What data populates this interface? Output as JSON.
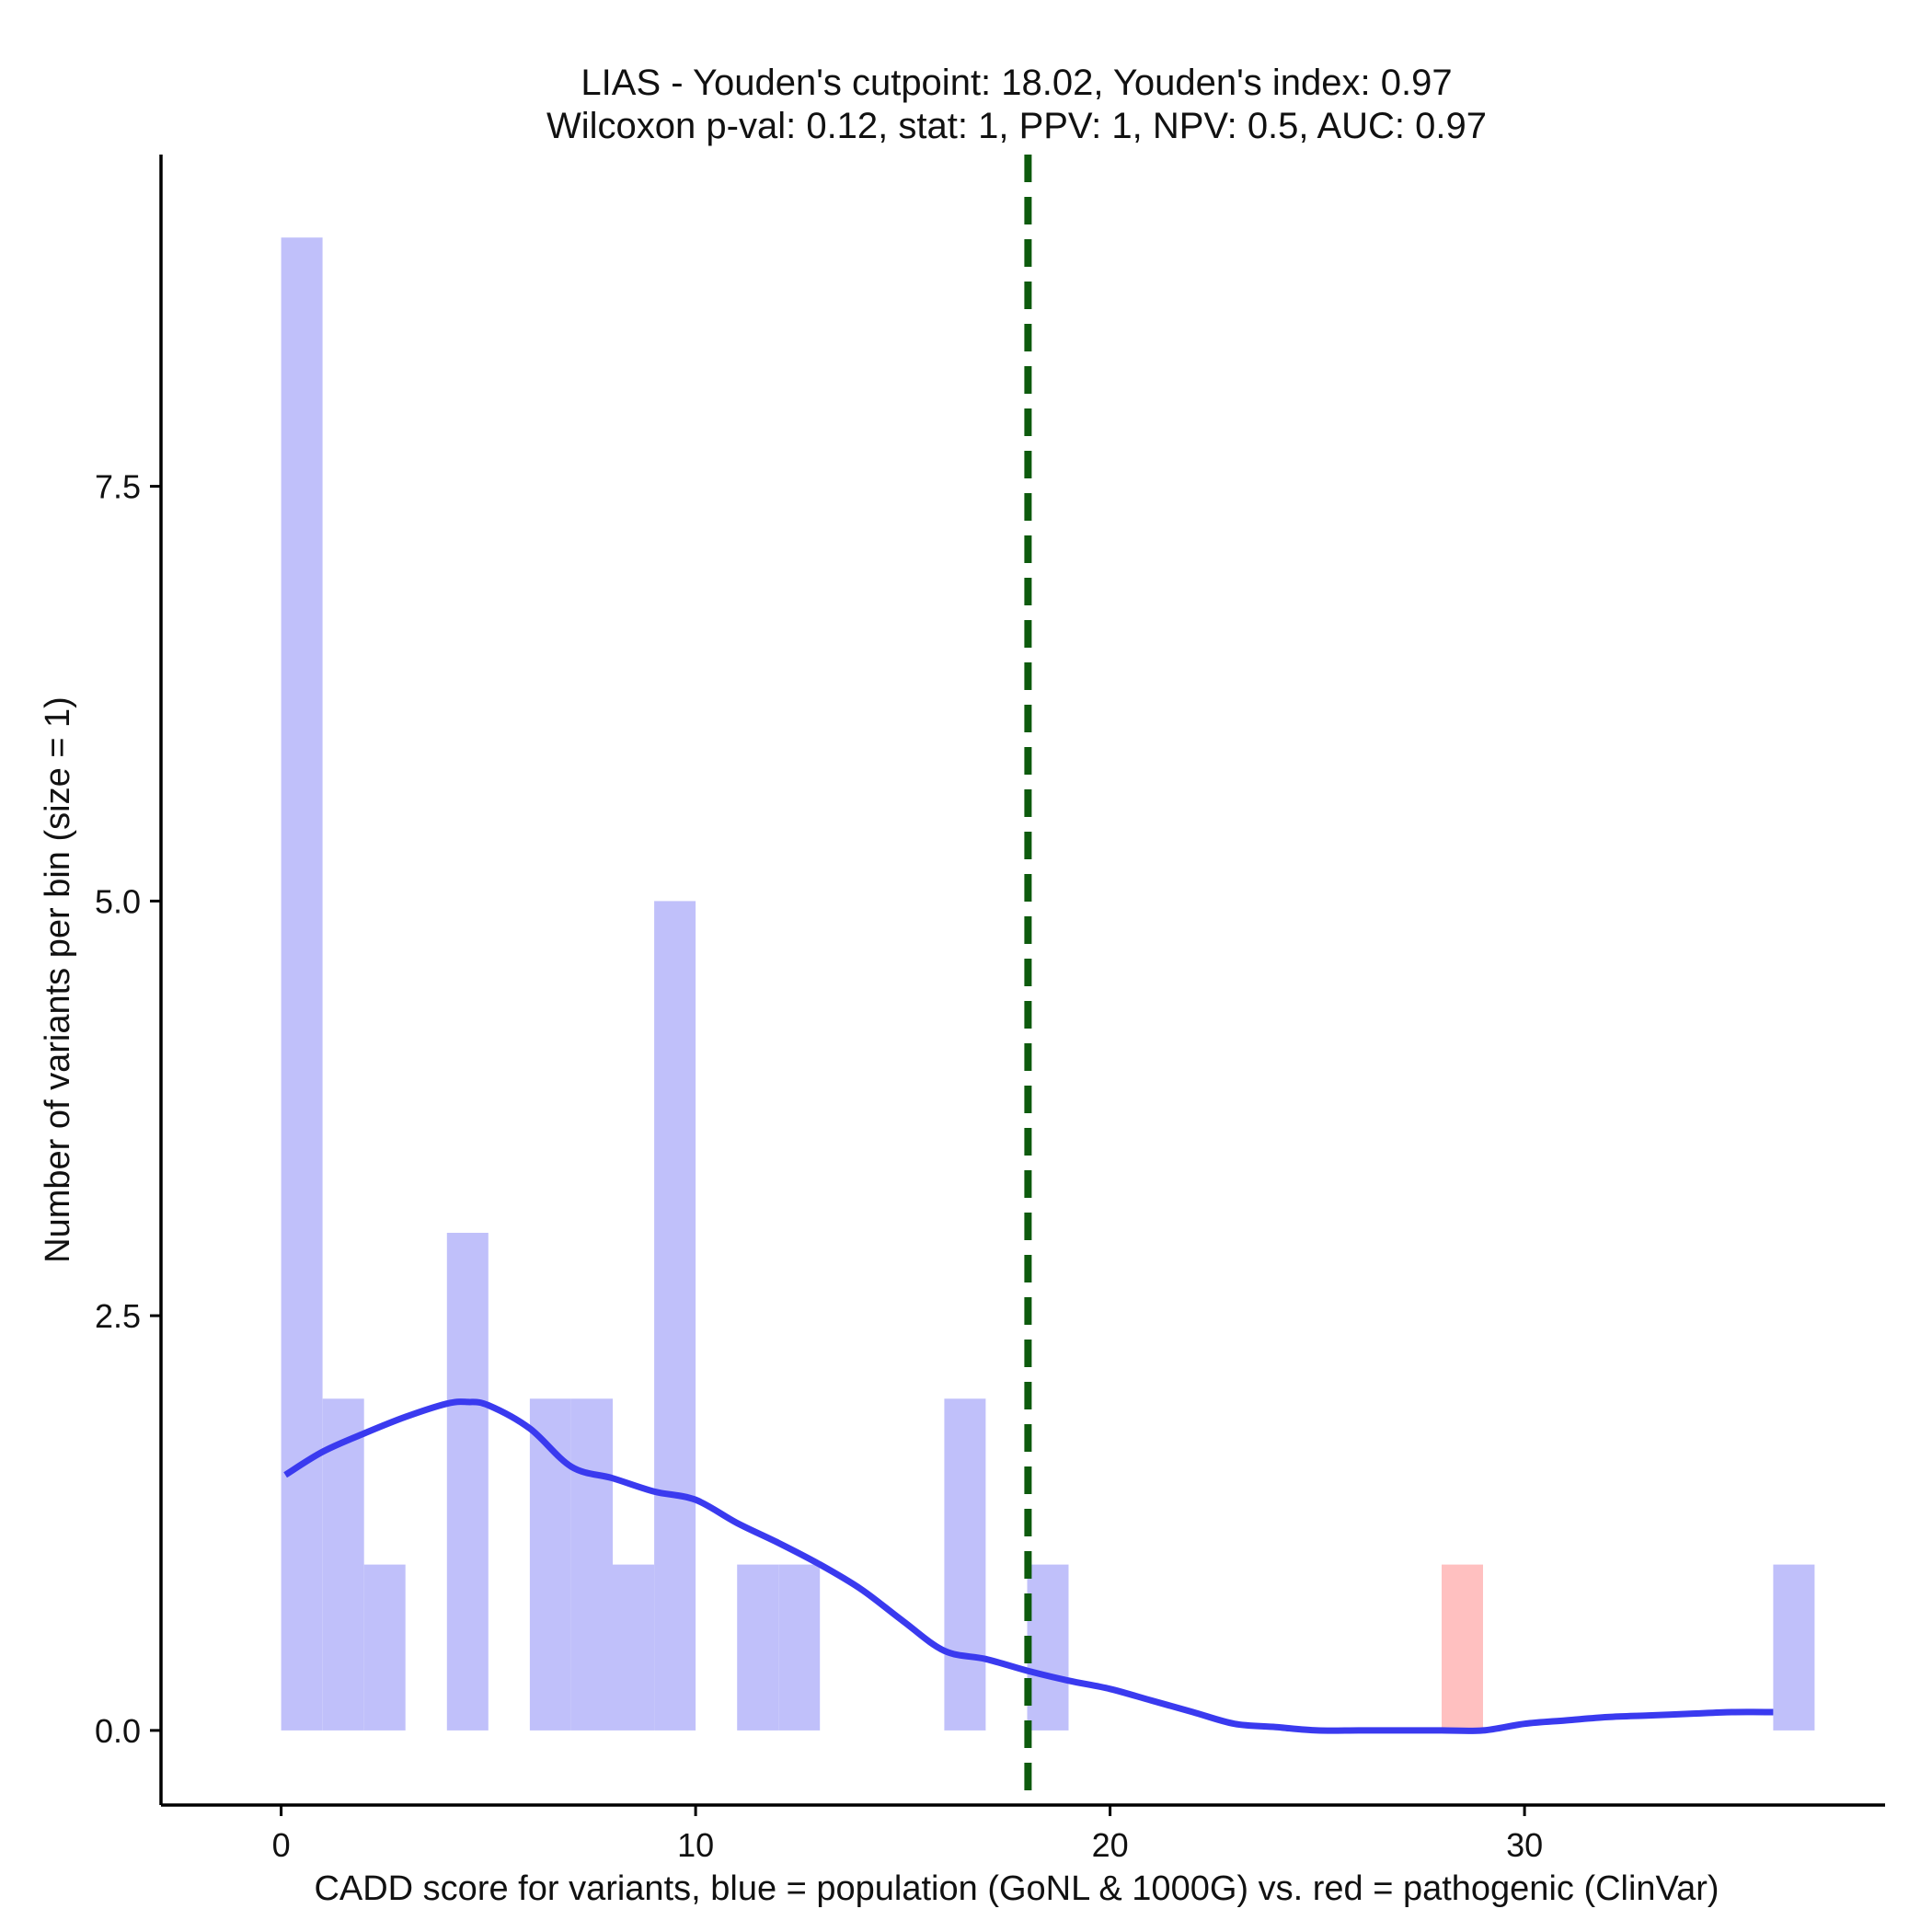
{
  "chart_data": {
    "type": "bar",
    "title": [
      "LIAS - Youden's cutpoint: 18.02, Youden's index: 0.97",
      "Wilcoxon p-val: 0.12, stat: 1, PPV: 1, NPV: 0.5, AUC: 0.97"
    ],
    "xlabel": "CADD score for variants, blue = population (GoNL & 1000G) vs. red = pathogenic (ClinVar)",
    "ylabel": "Number of variants per bin (size = 1)",
    "xlim": [
      -2.9,
      38.7
    ],
    "ylim": [
      -0.45,
      9.5
    ],
    "x_ticks": [
      0,
      10,
      20,
      30
    ],
    "x_tick_labels": [
      "0",
      "10",
      "20",
      "30"
    ],
    "y_ticks": [
      0,
      2.5,
      5,
      7.5
    ],
    "y_tick_labels": [
      "0.0",
      "2.5",
      "5.0",
      "7.5"
    ],
    "bin_width": 1,
    "series": [
      {
        "name": "population (GoNL & 1000G)",
        "color": "#c0c0fa",
        "bins": [
          {
            "start": 0,
            "count": 9
          },
          {
            "start": 1,
            "count": 2
          },
          {
            "start": 2,
            "count": 1
          },
          {
            "start": 4,
            "count": 3
          },
          {
            "start": 6,
            "count": 2
          },
          {
            "start": 7,
            "count": 2
          },
          {
            "start": 8,
            "count": 1
          },
          {
            "start": 9,
            "count": 5
          },
          {
            "start": 11,
            "count": 1
          },
          {
            "start": 12,
            "count": 1
          },
          {
            "start": 16,
            "count": 2
          },
          {
            "start": 18,
            "count": 1
          },
          {
            "start": 36,
            "count": 1
          }
        ]
      },
      {
        "name": "pathogenic (ClinVar)",
        "color": "#ffc0c0",
        "bins": [
          {
            "start": 28,
            "count": 1
          }
        ]
      }
    ],
    "density_curve": {
      "name": "population density",
      "color": "#3a3aef",
      "x": [
        0.1,
        1,
        2,
        3,
        4,
        4.5,
        5,
        6,
        7,
        8,
        9,
        10,
        11,
        12,
        13,
        14,
        15,
        16,
        17,
        18,
        19,
        20,
        21,
        22,
        23,
        24,
        25,
        26,
        27,
        28,
        29,
        30,
        31,
        32,
        33,
        34,
        35,
        36
      ],
      "y": [
        1.54,
        1.68,
        1.79,
        1.89,
        1.97,
        1.98,
        1.96,
        1.82,
        1.59,
        1.52,
        1.44,
        1.39,
        1.25,
        1.13,
        1.0,
        0.85,
        0.66,
        0.48,
        0.43,
        0.36,
        0.3,
        0.25,
        0.18,
        0.11,
        0.04,
        0.02,
        0.0,
        0.0,
        0.0,
        0.0,
        0.0,
        0.04,
        0.06,
        0.08,
        0.09,
        0.1,
        0.11,
        0.11
      ]
    },
    "cutpoint": {
      "x": 18.02,
      "color": "#0d5a0d",
      "style": "dashed"
    },
    "grid": false
  }
}
